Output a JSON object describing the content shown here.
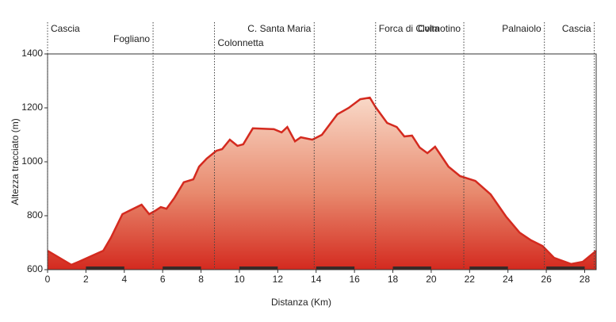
{
  "chart_data": {
    "type": "area",
    "x_label": "Distanza (Km)",
    "y_label": "Altezza tracciato (m)",
    "x": [
      0,
      1.24,
      1.65,
      2.27,
      2.9,
      3.3,
      3.9,
      4.3,
      4.9,
      5.3,
      5.6,
      5.9,
      6.2,
      6.6,
      7.1,
      7.6,
      7.9,
      8.3,
      8.8,
      9.1,
      9.5,
      9.9,
      10.2,
      10.7,
      11.8,
      12.2,
      12.5,
      12.9,
      13.2,
      13.8,
      14.3,
      15.1,
      15.7,
      16.3,
      16.8,
      17.1,
      17.7,
      18.2,
      18.6,
      19.0,
      19.4,
      19.8,
      20.2,
      20.9,
      21.5,
      22.3,
      23.1,
      23.9,
      24.6,
      25.2,
      25.8,
      26.4,
      27.3,
      27.9,
      28.6
    ],
    "series": [
      {
        "color": "#d42a1f",
        "values": [
          670,
          618,
          630,
          650,
          670,
          718,
          806,
          820,
          841,
          806,
          818,
          832,
          826,
          865,
          924,
          935,
          982,
          1012,
          1041,
          1047,
          1082,
          1059,
          1065,
          1124,
          1121,
          1109,
          1129,
          1076,
          1091,
          1082,
          1100,
          1176,
          1200,
          1232,
          1238,
          1203,
          1144,
          1129,
          1094,
          1097,
          1053,
          1032,
          1056,
          982,
          947,
          929,
          879,
          797,
          738,
          709,
          688,
          644,
          621,
          629,
          670
        ]
      }
    ],
    "waypoints": [
      {
        "label": "Cascia",
        "x": 0
      },
      {
        "label": "Fogliano",
        "x": 5.5
      },
      {
        "label": "Colonnetta",
        "x": 8.7
      },
      {
        "label": "C. Santa Maria",
        "x": 13.9
      },
      {
        "label": "Forca di Civita",
        "x": 17.1
      },
      {
        "label": "Colmotino",
        "x": 21.7
      },
      {
        "label": "Palnaiolo",
        "x": 25.9
      },
      {
        "label": "Cascia",
        "x": 28.5
      }
    ],
    "xlim": [
      0,
      28.6
    ],
    "ylim": [
      600,
      1400
    ],
    "xticks": [
      0,
      2,
      4,
      6,
      8,
      10,
      12,
      14,
      16,
      18,
      20,
      22,
      24,
      26,
      28
    ],
    "yticks": [
      600,
      800,
      1000,
      1200,
      1400
    ]
  }
}
